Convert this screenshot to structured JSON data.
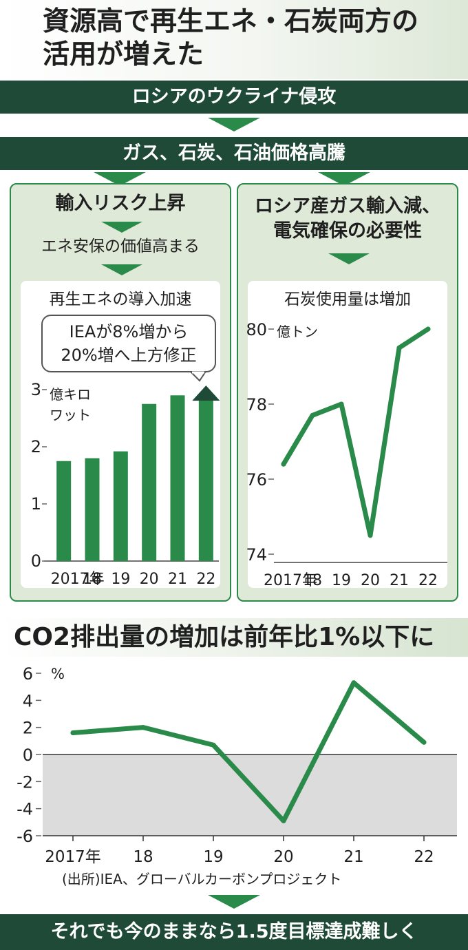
{
  "title": "資源高で再生エネ・石炭両方の\n活用が増えた",
  "flow": {
    "banner1": "ロシアのウクライナ侵攻",
    "banner2": "ガス、石炭、石油価格高騰",
    "left_head": "輸入リスク上昇",
    "left_sub": "エネ安保の価値高まる",
    "right_head": "ロシア産ガス輸入減、\n電気確保の必要性",
    "final_banner": "それでも今のままなら1.5度目標達成難しく"
  },
  "colors": {
    "dark_green": "#1f4a37",
    "accent_green": "#2a8a4a",
    "panel_fill": "#dfe9d7",
    "negative_band": "#dcdcdc"
  },
  "chart_data": [
    {
      "type": "bar",
      "title": "再生エネの導入加速",
      "categories": [
        "2017年",
        "18",
        "19",
        "20",
        "21",
        "22"
      ],
      "values": [
        1.75,
        1.8,
        1.92,
        2.75,
        2.9,
        3.0
      ],
      "highlight_last_as_arrow": true,
      "ylabel": "億キロワット",
      "ylim": [
        0,
        3
      ],
      "yticks": [
        "0",
        "1",
        "2",
        "3"
      ],
      "annotation": "IEAが8%増から\n20%増へ上方修正"
    },
    {
      "type": "line",
      "title": "石炭使用量は増加",
      "categories": [
        "2017年",
        "18",
        "19",
        "20",
        "21",
        "22"
      ],
      "values": [
        76.4,
        77.7,
        78.0,
        74.5,
        79.5,
        80.0
      ],
      "ylabel": "億トン",
      "ylim": [
        74,
        80
      ],
      "yticks": [
        "74",
        "76",
        "78",
        "80"
      ]
    },
    {
      "type": "line",
      "title": "CO2排出量の増加は前年比1%以下に",
      "categories": [
        "2017年",
        "18",
        "19",
        "20",
        "21",
        "22"
      ],
      "values": [
        1.6,
        2.0,
        0.7,
        -4.9,
        5.3,
        0.9
      ],
      "ylabel": "%",
      "ylim": [
        -6,
        6
      ],
      "yticks": [
        "-6",
        "-4",
        "-2",
        "0",
        "2",
        "4",
        "6"
      ],
      "negative_region_shaded": true
    }
  ],
  "source": "(出所)IEA、グローバルカーボンプロジェクト"
}
